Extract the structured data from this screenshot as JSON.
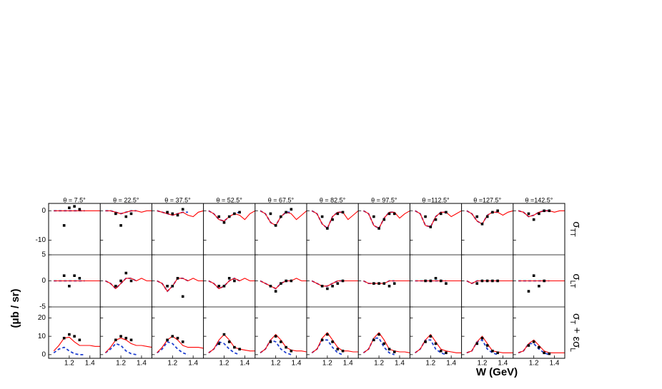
{
  "chart_data": {
    "type": "panel-grid",
    "y_label": "(μb / sr)",
    "x_label": "W  (GeV)",
    "column_titles": [
      "θ = 7.5°",
      "θ = 22.5°",
      "θ = 37.5°",
      "θ = 52.5°",
      "θ = 67.5°",
      "θ = 82.5°",
      "θ = 97.5°",
      "θ =112.5°",
      "θ =127.5°",
      "θ =142.5°"
    ],
    "xlim": [
      1.0,
      1.5
    ],
    "xticks": [
      1.2,
      1.4
    ],
    "curve_x": [
      1.05,
      1.1,
      1.15,
      1.2,
      1.25,
      1.3,
      1.35,
      1.4,
      1.45,
      1.5
    ],
    "data_x": [
      1.15,
      1.2,
      1.25,
      1.3,
      1.35
    ],
    "point_color": "#000000",
    "red_color": "#ff0000",
    "blue_color": "#1f3fd0",
    "rows": [
      {
        "label": [
          {
            "t": "σ"
          },
          {
            "t": "TT",
            "sub": true
          }
        ],
        "ylim": [
          -15,
          2.5
        ],
        "yticks": [
          0,
          -10
        ],
        "panels": [
          {
            "data": [
              -5,
              1,
              1.5,
              0.5,
              null
            ],
            "red": [
              0,
              0,
              0,
              0,
              0,
              0,
              0,
              0,
              0,
              0
            ],
            "blue": [
              0,
              0,
              0,
              0,
              0,
              0,
              0,
              null,
              null,
              null
            ]
          },
          {
            "data": [
              -1,
              -5,
              -2,
              -1,
              null
            ],
            "red": [
              0,
              0,
              -0.5,
              -1,
              -0.5,
              0,
              0,
              -0.5,
              0,
              0
            ],
            "blue": [
              0,
              0,
              -0.5,
              -1,
              -0.5,
              0,
              0,
              null,
              null,
              null
            ]
          },
          {
            "data": [
              -0.5,
              -1,
              -1.5,
              0.5,
              null
            ],
            "red": [
              0,
              -0.5,
              -1,
              -1.5,
              -1,
              -0.5,
              -1.5,
              -2,
              -0.5,
              0
            ],
            "blue": [
              0,
              -0.5,
              -1,
              -1.5,
              -1,
              -0.5,
              -0.5,
              null,
              null,
              null
            ]
          },
          {
            "data": [
              -2,
              -4,
              -2,
              -1,
              -0.5
            ],
            "red": [
              0,
              -1,
              -3,
              -3.5,
              -2,
              -1,
              -1.5,
              -3,
              -1,
              0
            ],
            "blue": [
              0,
              -1,
              -3,
              -3.5,
              -2,
              -1,
              -0.5,
              null,
              null,
              null
            ]
          },
          {
            "data": [
              -1,
              -5,
              -2,
              -0.5,
              0.5
            ],
            "red": [
              0,
              -1,
              -4,
              -5,
              -2,
              -0.5,
              -1,
              -3,
              -1.5,
              0
            ],
            "blue": [
              0,
              -1,
              -4,
              -5,
              -2,
              -0.5,
              -0.5,
              null,
              null,
              null
            ]
          },
          {
            "data": [
              -2,
              -6,
              -3,
              -1,
              -0.5
            ],
            "red": [
              0,
              -1,
              -4.5,
              -6,
              -2,
              -0.5,
              -0.5,
              -3,
              -1.5,
              0
            ],
            "blue": [
              0,
              -1,
              -4.5,
              -6,
              -2,
              -0.5,
              -0.5,
              null,
              null,
              null
            ]
          },
          {
            "data": [
              -2,
              -6,
              -3,
              -1,
              -1
            ],
            "red": [
              0,
              -1,
              -5,
              -6,
              -2.5,
              -0.5,
              -0.5,
              -2.5,
              -1,
              0
            ],
            "blue": [
              0,
              -1,
              -5,
              -6,
              -2.5,
              -0.5,
              -0.5,
              null,
              null,
              null
            ]
          },
          {
            "data": [
              -2,
              -5.5,
              -3,
              -1,
              -0.5
            ],
            "red": [
              0,
              -1,
              -5,
              -5.5,
              -2,
              -0.5,
              -0.5,
              -2,
              -1,
              0
            ],
            "blue": [
              0,
              -1,
              -5,
              -5.5,
              -2,
              -0.5,
              -0.5,
              null,
              null,
              null
            ]
          },
          {
            "data": [
              -2,
              -4.5,
              -2,
              -0.5,
              0
            ],
            "red": [
              0,
              -1,
              -3.5,
              -4.5,
              -1.5,
              -0.5,
              -0.5,
              -1.5,
              -0.5,
              0
            ],
            "blue": [
              0,
              -1,
              -3.5,
              -4.5,
              -1.5,
              -0.5,
              -0.5,
              null,
              null,
              null
            ]
          },
          {
            "data": [
              -1,
              -3,
              -1,
              0,
              0
            ],
            "red": [
              0,
              -0.5,
              -2,
              -1.5,
              -0.5,
              0,
              0,
              -0.5,
              0,
              0
            ],
            "blue": [
              0,
              -0.5,
              -2,
              -1.5,
              -0.5,
              0,
              0,
              null,
              null,
              null
            ]
          }
        ]
      },
      {
        "label": [
          {
            "t": "σ"
          },
          {
            "t": "LT",
            "sub": true
          }
        ],
        "ylim": [
          -5,
          5
        ],
        "yticks": [
          5,
          0,
          -5
        ],
        "panels": [
          {
            "data": [
              1,
              -1,
              1,
              0.5,
              null
            ],
            "red": [
              0,
              0,
              0,
              0,
              0,
              0,
              0,
              0,
              0,
              0
            ],
            "blue": [
              0,
              0,
              0,
              0,
              0,
              0,
              0,
              null,
              null,
              null
            ]
          },
          {
            "data": [
              -1,
              0,
              1.5,
              0,
              null
            ],
            "red": [
              0,
              -0.5,
              -1.5,
              -0.5,
              0.5,
              0.5,
              0,
              0.5,
              0,
              0
            ],
            "blue": [
              0,
              -0.5,
              -1.5,
              -0.5,
              0.5,
              0.5,
              0,
              null,
              null,
              null
            ]
          },
          {
            "data": [
              -1,
              -1,
              0.5,
              -3,
              null
            ],
            "red": [
              0,
              -0.5,
              -2,
              -1,
              0.5,
              0.5,
              0,
              0.5,
              0,
              0
            ],
            "blue": [
              0,
              -0.5,
              -2,
              -1,
              0.5,
              0.5,
              0,
              null,
              null,
              null
            ]
          },
          {
            "data": [
              -1,
              -1,
              0.5,
              0,
              null
            ],
            "red": [
              0,
              -0.5,
              -1.5,
              -1,
              0,
              0.5,
              0,
              0.5,
              0,
              0
            ],
            "blue": [
              0,
              -0.5,
              -1.5,
              -1,
              0,
              0.5,
              0,
              null,
              null,
              null
            ]
          },
          {
            "data": [
              -1,
              -2,
              -0.5,
              0,
              0
            ],
            "red": [
              0,
              -0.5,
              -1,
              -1.5,
              -0.5,
              0,
              0,
              0.5,
              0,
              0
            ],
            "blue": [
              0,
              -0.5,
              -1,
              -1.5,
              -0.5,
              0,
              0,
              null,
              null,
              null
            ]
          },
          {
            "data": [
              -1,
              -1.5,
              -1,
              -0.5,
              0
            ],
            "red": [
              0,
              -0.5,
              -1,
              -1,
              -0.5,
              0,
              0,
              0,
              0,
              0
            ],
            "blue": [
              0,
              -0.5,
              -1,
              -1,
              -0.5,
              0,
              0,
              null,
              null,
              null
            ]
          },
          {
            "data": [
              -0.5,
              -0.5,
              -0.5,
              -1,
              -0.5
            ],
            "red": [
              0,
              -0.5,
              -0.5,
              -0.5,
              -0.5,
              0,
              0,
              0,
              0,
              0
            ],
            "blue": [
              0,
              -0.5,
              -0.5,
              -0.5,
              -0.5,
              0,
              0,
              null,
              null,
              null
            ]
          },
          {
            "data": [
              0,
              0,
              0.5,
              0,
              -0.5
            ],
            "red": [
              0,
              0,
              0,
              0,
              0,
              0,
              0,
              0,
              0,
              0
            ],
            "blue": [
              0,
              0,
              0,
              0,
              0,
              0,
              0,
              null,
              null,
              null
            ]
          },
          {
            "data": [
              -0.5,
              0,
              0,
              0,
              0
            ],
            "red": [
              0,
              -0.5,
              0,
              0,
              0,
              0,
              0,
              0,
              0,
              0
            ],
            "blue": [
              0,
              -0.5,
              0,
              0,
              0,
              0,
              0,
              null,
              null,
              null
            ]
          },
          {
            "data": [
              -2,
              1,
              -1,
              0,
              null
            ],
            "red": [
              0,
              0,
              0,
              0,
              0,
              0,
              0,
              0,
              0,
              0
            ],
            "blue": [
              0,
              0,
              0,
              0,
              0,
              0,
              0,
              null,
              null,
              null
            ]
          }
        ]
      },
      {
        "label": [
          {
            "t": "σ"
          },
          {
            "t": "T",
            "sub": true
          },
          {
            "t": " + εσ"
          },
          {
            "t": "L",
            "sub": true
          }
        ],
        "ylim": [
          -2,
          26
        ],
        "yticks": [
          0,
          10,
          20
        ],
        "panels": [
          {
            "data": [
              9,
              11,
              10,
              8,
              null
            ],
            "red": [
              2,
              5,
              9,
              9.5,
              7,
              5,
              5,
              5,
              4.5,
              4.5
            ],
            "blue": [
              1,
              3,
              4,
              2,
              0.5,
              0,
              0,
              null,
              null,
              null
            ]
          },
          {
            "data": [
              8,
              10,
              9,
              8,
              null
            ],
            "red": [
              1,
              4,
              8,
              9,
              8,
              6,
              5,
              5,
              4.5,
              4
            ],
            "blue": [
              1,
              3,
              6,
              5,
              2,
              0.5,
              0,
              null,
              null,
              null
            ]
          },
          {
            "data": [
              8,
              10,
              9,
              7,
              null
            ],
            "red": [
              1,
              4,
              8,
              10,
              8,
              5,
              4,
              4,
              4,
              3.5
            ],
            "blue": [
              1,
              3,
              7,
              6,
              3,
              1,
              0,
              null,
              null,
              null
            ]
          },
          {
            "data": [
              6,
              11,
              7,
              4,
              3
            ],
            "red": [
              1,
              3,
              8,
              11,
              8,
              4,
              3,
              2.5,
              2,
              2
            ],
            "blue": [
              1,
              3,
              7,
              6,
              3,
              1,
              0,
              null,
              null,
              null
            ]
          },
          {
            "data": [
              7,
              10,
              7,
              4,
              2
            ],
            "red": [
              1,
              3,
              8,
              11,
              8,
              4,
              2.5,
              2,
              2,
              1.5
            ],
            "blue": [
              1,
              3,
              8,
              7,
              3,
              1,
              0,
              null,
              null,
              null
            ]
          },
          {
            "data": [
              8,
              11,
              7,
              3,
              2
            ],
            "red": [
              1,
              3,
              9,
              12,
              8,
              4,
              2,
              2,
              1.5,
              1.5
            ],
            "blue": [
              1,
              3,
              8,
              8,
              4,
              1,
              0,
              null,
              null,
              null
            ]
          },
          {
            "data": [
              8,
              11,
              6,
              3,
              1.5
            ],
            "red": [
              1,
              3,
              9,
              12,
              8,
              3,
              2,
              1.5,
              1.5,
              1
            ],
            "blue": [
              1,
              3,
              9,
              9,
              4,
              1,
              0,
              null,
              null,
              null
            ]
          },
          {
            "data": [
              7,
              10,
              6,
              2,
              1
            ],
            "red": [
              1,
              3,
              8,
              11,
              7,
              3,
              2,
              1.5,
              1,
              1
            ],
            "blue": [
              1,
              3,
              8,
              8,
              3,
              1,
              0,
              null,
              null,
              null
            ]
          },
          {
            "data": [
              6,
              9,
              5,
              2,
              1
            ],
            "red": [
              1,
              2,
              7,
              10,
              6,
              2,
              1.5,
              1,
              1,
              1
            ],
            "blue": [
              1,
              2,
              7,
              8,
              3,
              1,
              0,
              null,
              null,
              null
            ]
          },
          {
            "data": [
              5,
              7,
              4,
              1,
              0.5
            ],
            "red": [
              1,
              2,
              6,
              8,
              5,
              2,
              1,
              1,
              1,
              1
            ],
            "blue": [
              1,
              2,
              6,
              6,
              3,
              1,
              0,
              null,
              null,
              null
            ]
          }
        ]
      }
    ]
  }
}
